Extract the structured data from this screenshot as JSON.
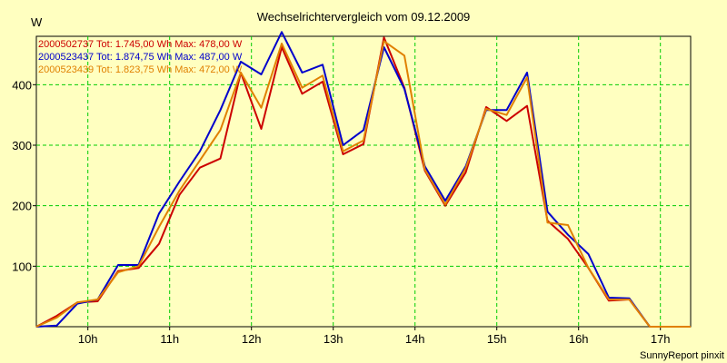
{
  "chart_data": {
    "type": "line",
    "title": "Wechselrichtervergleich vom 09.12.2009",
    "ylabel": "W",
    "xlabel": "",
    "ylim": [
      0,
      480
    ],
    "xlim": [
      9.37,
      17.37
    ],
    "yticks": [
      100,
      200,
      300,
      400
    ],
    "xticks": [
      {
        "value": 10,
        "label": "10h"
      },
      {
        "value": 11,
        "label": "11h"
      },
      {
        "value": 12,
        "label": "12h"
      },
      {
        "value": 13,
        "label": "13h"
      },
      {
        "value": 14,
        "label": "14h"
      },
      {
        "value": 15,
        "label": "15h"
      },
      {
        "value": 16,
        "label": "16h"
      },
      {
        "value": 17,
        "label": "17h"
      }
    ],
    "grid": true,
    "footer": "SunnyReport pinxit",
    "series": [
      {
        "name": "2000502737",
        "color": "#cc0000",
        "legend": "2000502737 Tot: 1.745,00 Wh Max: 478,00 W",
        "x": [
          9.37,
          9.62,
          9.87,
          10.12,
          10.37,
          10.62,
          10.87,
          11.12,
          11.37,
          11.62,
          11.87,
          12.12,
          12.37,
          12.62,
          12.87,
          13.12,
          13.37,
          13.62,
          13.87,
          14.12,
          14.37,
          14.62,
          14.87,
          15.12,
          15.37,
          15.62,
          15.87,
          16.12,
          16.37,
          16.62,
          16.87,
          17.12,
          17.37
        ],
        "y": [
          0,
          18,
          40,
          42,
          92,
          97,
          137,
          218,
          263,
          278,
          420,
          327,
          462,
          385,
          405,
          285,
          302,
          478,
          395,
          258,
          200,
          255,
          363,
          340,
          365,
          175,
          145,
          97,
          43,
          45,
          0,
          0,
          0
        ]
      },
      {
        "name": "2000523437",
        "color": "#0000cc",
        "legend": "2000523437 Tot: 1.874,75 Wh Max: 487,00 W",
        "x": [
          9.37,
          9.62,
          9.87,
          10.12,
          10.37,
          10.62,
          10.87,
          11.12,
          11.37,
          11.62,
          11.87,
          12.12,
          12.37,
          12.62,
          12.87,
          13.12,
          13.37,
          13.62,
          13.87,
          14.12,
          14.37,
          14.62,
          14.87,
          15.12,
          15.37,
          15.62,
          15.87,
          16.12,
          16.37,
          16.62,
          16.87,
          17.12,
          17.37
        ],
        "y": [
          0,
          2,
          38,
          45,
          102,
          102,
          187,
          240,
          290,
          358,
          438,
          417,
          487,
          420,
          433,
          300,
          325,
          462,
          393,
          265,
          208,
          265,
          358,
          358,
          420,
          190,
          152,
          120,
          48,
          47,
          0,
          0,
          0
        ]
      },
      {
        "name": "2000523439",
        "color": "#e08000",
        "legend": "2000523439 Tot: 1.823,75 Wh Max: 472,00 W",
        "x": [
          9.37,
          9.62,
          9.87,
          10.12,
          10.37,
          10.62,
          10.87,
          11.12,
          11.37,
          11.62,
          11.87,
          12.12,
          12.37,
          12.62,
          12.87,
          13.12,
          13.37,
          13.62,
          13.87,
          14.12,
          14.37,
          14.62,
          14.87,
          15.12,
          15.37,
          15.62,
          15.87,
          16.12,
          16.37,
          16.62,
          16.87,
          17.12,
          17.37
        ],
        "y": [
          0,
          15,
          40,
          45,
          90,
          100,
          165,
          225,
          275,
          325,
          420,
          362,
          468,
          395,
          415,
          290,
          308,
          472,
          448,
          260,
          202,
          262,
          360,
          350,
          412,
          172,
          168,
          97,
          45,
          45,
          0,
          0,
          0
        ]
      }
    ]
  }
}
